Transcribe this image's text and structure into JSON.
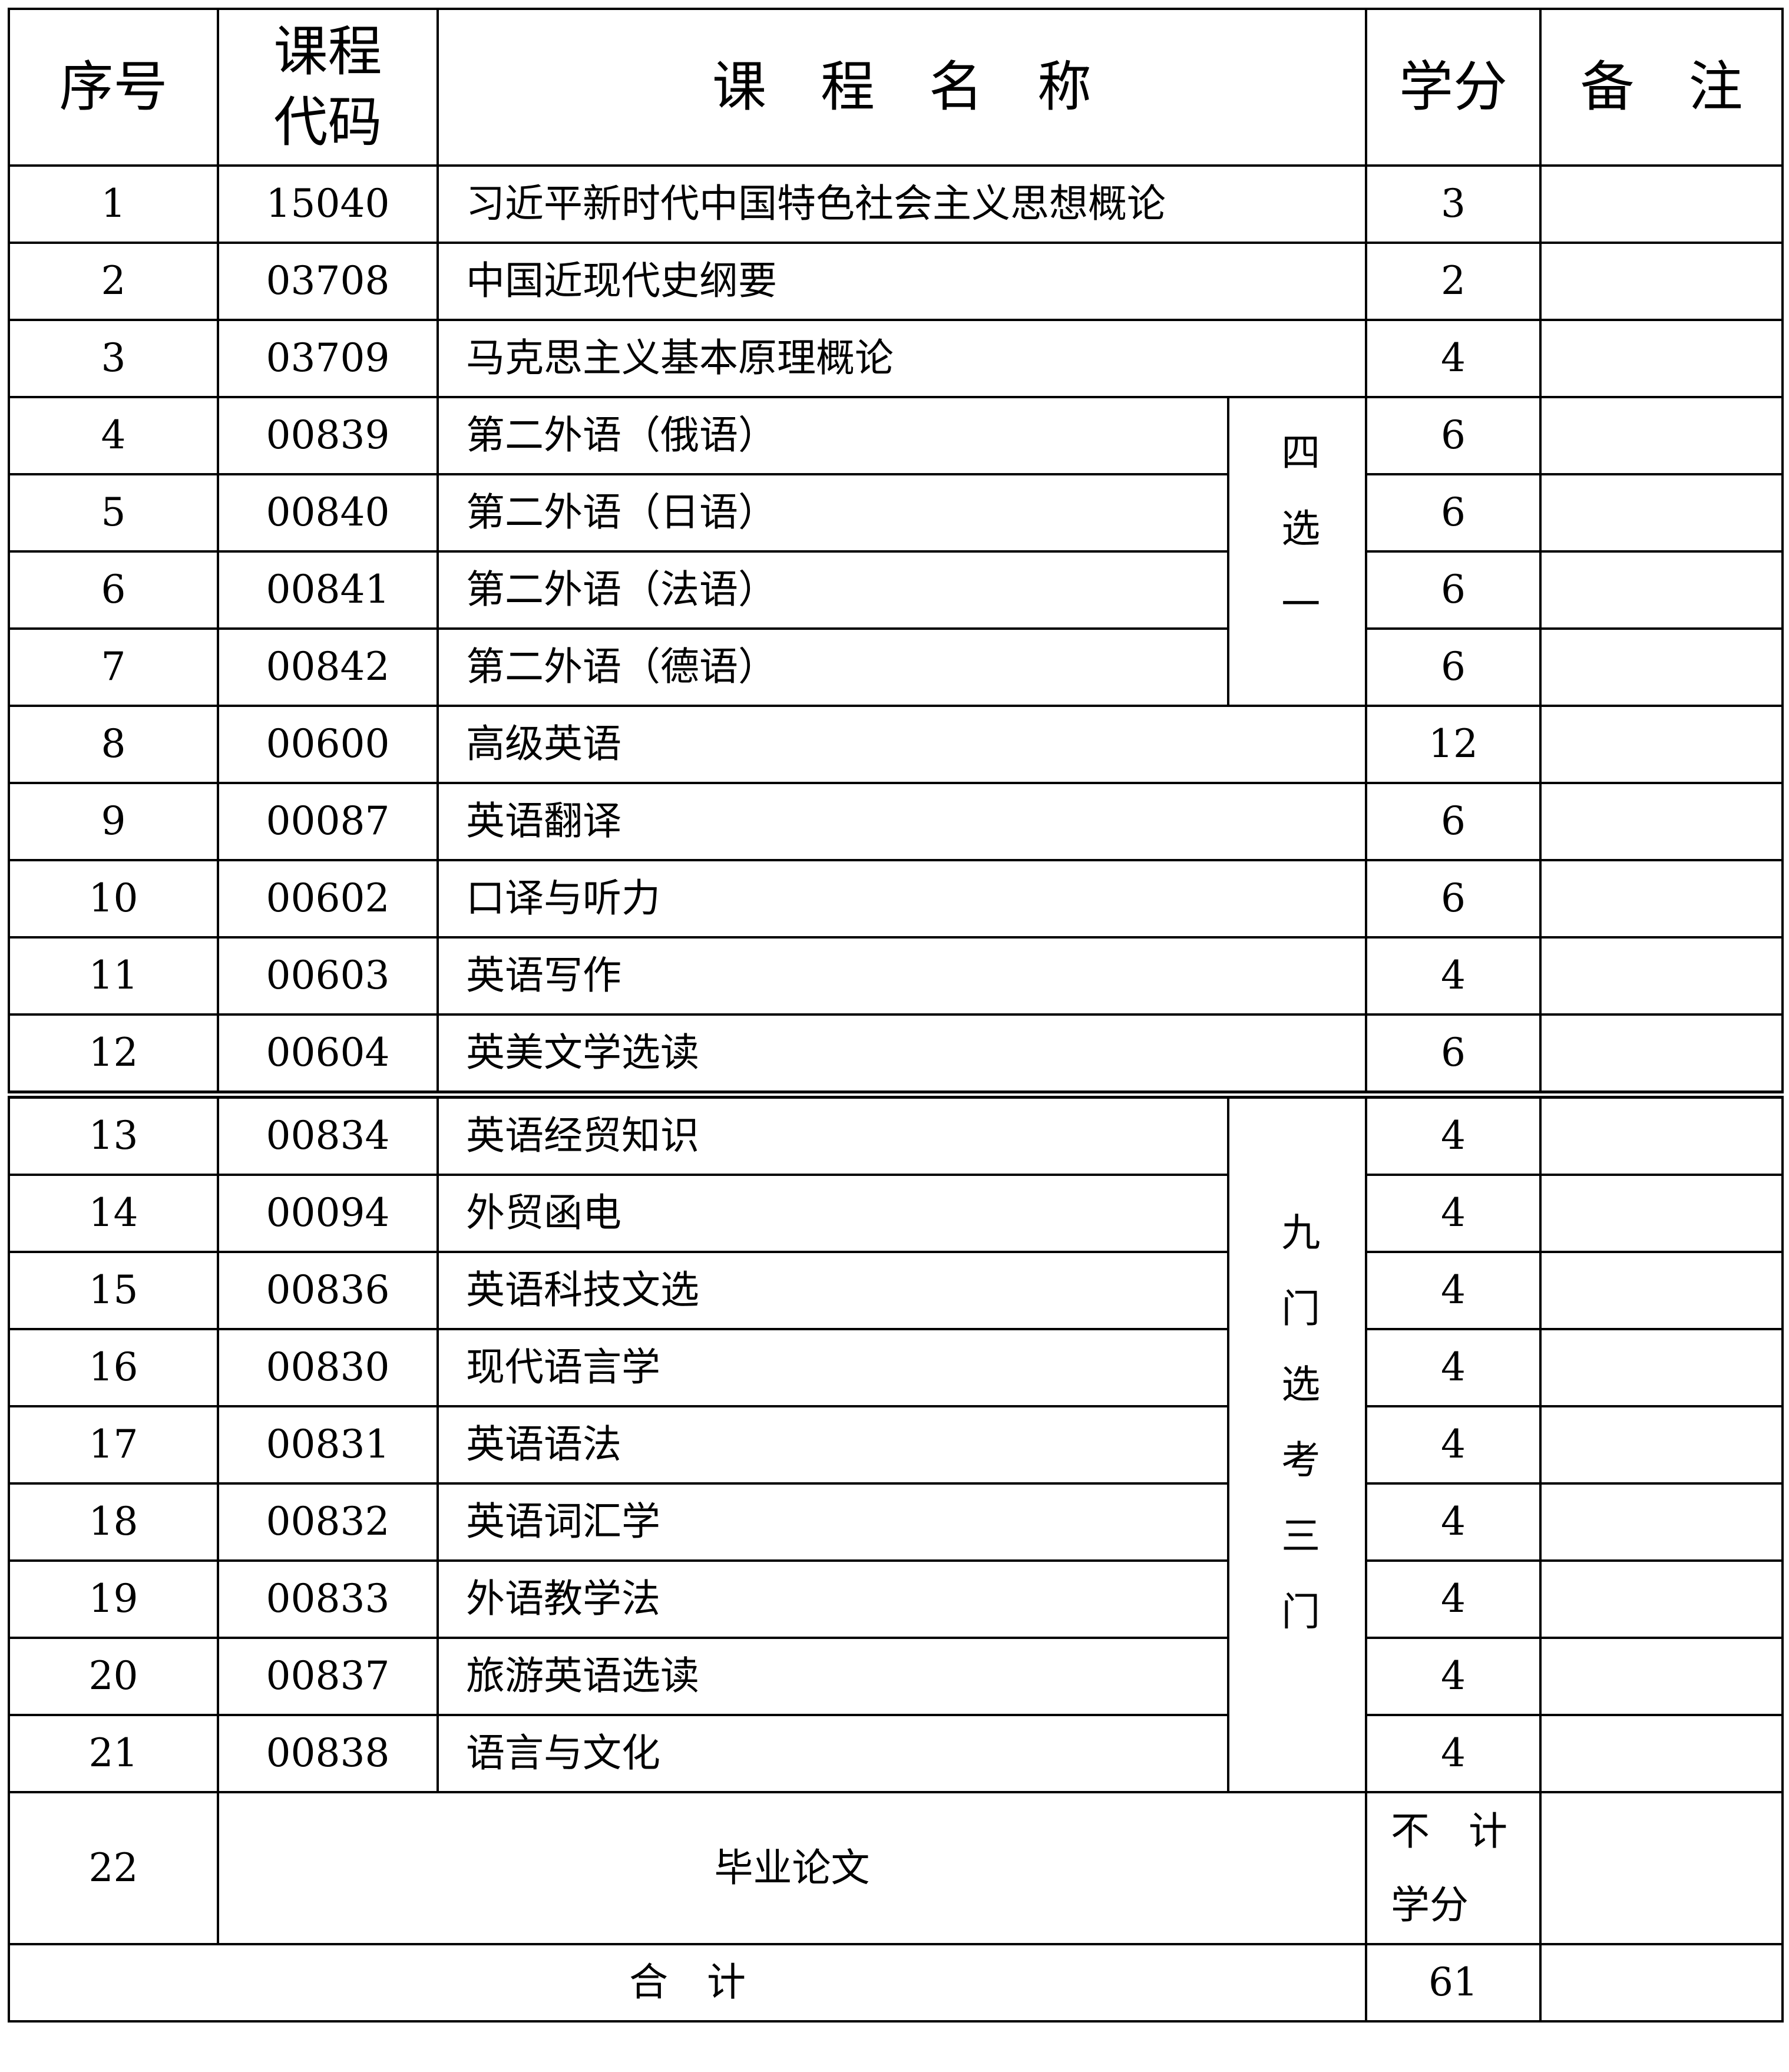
{
  "header": {
    "seq": "序号",
    "code": "课程代码",
    "name": "课　程　名　称",
    "credits": "学分",
    "remarks": "备　注"
  },
  "rows": [
    {
      "seq": "1",
      "code": "15040",
      "name": "习近平新时代中国特色社会主义思想概论",
      "credits": "3"
    },
    {
      "seq": "2",
      "code": "03708",
      "name": "中国近现代史纲要",
      "credits": "2"
    },
    {
      "seq": "3",
      "code": "03709",
      "name": "马克思主义基本原理概论",
      "credits": "4"
    },
    {
      "seq": "4",
      "code": "00839",
      "name": "第二外语（俄语）",
      "credits": "6",
      "group": 0
    },
    {
      "seq": "5",
      "code": "00840",
      "name": "第二外语（日语）",
      "credits": "6",
      "group": 0
    },
    {
      "seq": "6",
      "code": "00841",
      "name": "第二外语（法语）",
      "credits": "6",
      "group": 0
    },
    {
      "seq": "7",
      "code": "00842",
      "name": "第二外语（德语）",
      "credits": "6",
      "group": 0
    },
    {
      "seq": "8",
      "code": "00600",
      "name": "高级英语",
      "credits": "12"
    },
    {
      "seq": "9",
      "code": "00087",
      "name": "英语翻译",
      "credits": "6"
    },
    {
      "seq": "10",
      "code": "00602",
      "name": "口译与听力",
      "credits": "6"
    },
    {
      "seq": "11",
      "code": "00603",
      "name": "英语写作",
      "credits": "4"
    },
    {
      "seq": "12",
      "code": "00604",
      "name": "英美文学选读",
      "credits": "6"
    },
    {
      "seq": "13",
      "code": "00834",
      "name": "英语经贸知识",
      "credits": "4",
      "group": 1
    },
    {
      "seq": "14",
      "code": "00094",
      "name": "外贸函电",
      "credits": "4",
      "group": 1
    },
    {
      "seq": "15",
      "code": "00836",
      "name": "英语科技文选",
      "credits": "4",
      "group": 1
    },
    {
      "seq": "16",
      "code": "00830",
      "name": "现代语言学",
      "credits": "4",
      "group": 1
    },
    {
      "seq": "17",
      "code": "00831",
      "name": "英语语法",
      "credits": "4",
      "group": 1
    },
    {
      "seq": "18",
      "code": "00832",
      "name": "英语词汇学",
      "credits": "4",
      "group": 1
    },
    {
      "seq": "19",
      "code": "00833",
      "name": "外语教学法",
      "credits": "4",
      "group": 1
    },
    {
      "seq": "20",
      "code": "00837",
      "name": "旅游英语选读",
      "credits": "4",
      "group": 1
    },
    {
      "seq": "21",
      "code": "00838",
      "name": "语言与文化",
      "credits": "4",
      "group": 1
    }
  ],
  "groups": [
    "四选一",
    "九门选考三门"
  ],
  "thesis": {
    "seq": "22",
    "name": "毕业论文",
    "credits": "不　计学分"
  },
  "total": {
    "label": "合　计",
    "credits": "61"
  }
}
